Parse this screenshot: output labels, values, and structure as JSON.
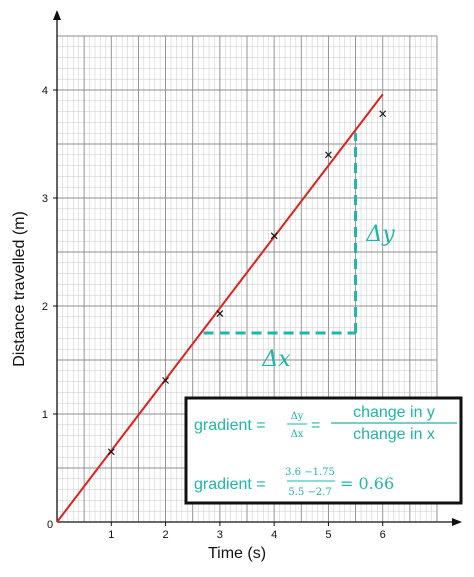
{
  "chart_data": {
    "type": "scatter",
    "title": "",
    "xlabel": "Time (s)",
    "ylabel": "Distance travelled (m)",
    "xlim": [
      0,
      7
    ],
    "ylim": [
      0,
      4.5
    ],
    "x_ticks": [
      "0",
      "1",
      "2",
      "3",
      "4",
      "5",
      "6"
    ],
    "y_ticks": [
      "1",
      "2",
      "3",
      "4"
    ],
    "grid": true,
    "points": [
      {
        "x": 1,
        "y": 0.65
      },
      {
        "x": 2,
        "y": 1.31
      },
      {
        "x": 3,
        "y": 1.93
      },
      {
        "x": 4,
        "y": 2.65
      },
      {
        "x": 5,
        "y": 3.4
      },
      {
        "x": 6,
        "y": 3.78
      }
    ],
    "line_of_best_fit": {
      "x": [
        0,
        6
      ],
      "y": [
        0,
        3.96
      ],
      "color": "#e0201c"
    },
    "gradient_triangle": {
      "x_start": 2.7,
      "x_end": 5.5,
      "y_start": 1.75,
      "y_end": 3.6,
      "color": "#1fb5a8"
    },
    "annotations": {
      "delta_x": "Δx",
      "delta_y": "Δy"
    },
    "formula_box": {
      "line1_label": "gradient =",
      "line1_frac1_num": "Δy",
      "line1_frac1_den": "Δx",
      "line1_eq": "=",
      "line1_frac2_num": "change in y",
      "line1_frac2_den": "change in x",
      "line2_label": "gradient =",
      "line2_frac_num": "3.6 −1.75",
      "line2_frac_den": "5.5 −2.7",
      "line2_result": "= 0.66"
    }
  },
  "colors": {
    "grid_minor": "#c8c8c8",
    "grid_major": "#8c8c8c",
    "line": "#e0201c",
    "accent": "#1fb5a8"
  }
}
